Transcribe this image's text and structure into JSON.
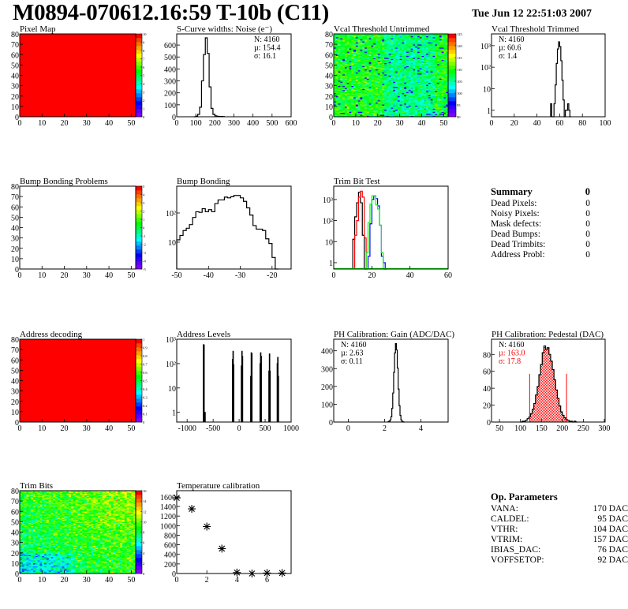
{
  "header": {
    "title": "M0894-070612.16:59 T-10b (C11)",
    "date": "Tue Jun 12 22:51:03 2007"
  },
  "summary": {
    "title": "Summary",
    "total": "0",
    "rows": [
      {
        "label": "Dead Pixels:",
        "value": "0"
      },
      {
        "label": "Noisy Pixels:",
        "value": "0"
      },
      {
        "label": "Mask defects:",
        "value": "0"
      },
      {
        "label": "Dead Bumps:",
        "value": "0"
      },
      {
        "label": "Dead Trimbits:",
        "value": "0"
      },
      {
        "label": "Address Probl:",
        "value": "0"
      }
    ]
  },
  "op_parameters": {
    "title": "Op. Parameters",
    "rows": [
      {
        "label": "VANA:",
        "value": "170 DAC"
      },
      {
        "label": "CALDEL:",
        "value": "95 DAC"
      },
      {
        "label": "VTHR:",
        "value": "104 DAC"
      },
      {
        "label": "VTRIM:",
        "value": "157 DAC"
      },
      {
        "label": "IBIAS_DAC:",
        "value": "76 DAC"
      },
      {
        "label": "VOFFSETOP:",
        "value": "92 DAC"
      }
    ]
  },
  "palette": [
    "#7f00ff",
    "#5a00ff",
    "#2f00ff",
    "#0000ff",
    "#0040ff",
    "#0080ff",
    "#00c0ff",
    "#00ffff",
    "#00ffc0",
    "#00ff80",
    "#00ff40",
    "#00ff00",
    "#40ff00",
    "#80ff00",
    "#c0ff00",
    "#ffff00",
    "#ffd000",
    "#ffa000",
    "#ff7000",
    "#ff4000",
    "#ff0000"
  ],
  "chart_data": [
    {
      "id": "pixel_map",
      "type": "heatmap",
      "title": "Pixel Map",
      "xlim": [
        0,
        52
      ],
      "ylim": [
        0,
        80
      ],
      "xticks": [
        0,
        10,
        20,
        30,
        40,
        50
      ],
      "yticks": [
        0,
        10,
        20,
        30,
        40,
        50,
        60,
        70,
        80
      ],
      "zlim": [
        0,
        10
      ],
      "zticks": [
        0,
        1,
        2,
        3,
        4,
        5,
        6,
        7,
        8,
        9,
        10
      ],
      "uniform_value": 10
    },
    {
      "id": "scurve",
      "type": "bar",
      "title": "S-Curve widths: Noise (e⁻)",
      "xlim": [
        0,
        600
      ],
      "ylim": [
        0,
        693
      ],
      "xticks": [
        0,
        100,
        200,
        300,
        400,
        500,
        600
      ],
      "yticks": [
        0,
        100,
        200,
        300,
        400,
        500,
        600
      ],
      "bins": {
        "start": 90,
        "width": 10,
        "counts": [
          0,
          5,
          20,
          80,
          300,
          520,
          660,
          530,
          250,
          70,
          20,
          8,
          4,
          3,
          3,
          2
        ]
      },
      "stats": [
        "N: 4160",
        "µ: 154.4",
        "σ: 16.1"
      ]
    },
    {
      "id": "vcal_untrimmed",
      "type": "heatmap",
      "title": "Vcal Threshold Untrimmed",
      "xlim": [
        0,
        52
      ],
      "ylim": [
        0,
        80
      ],
      "xticks": [
        0,
        10,
        20,
        30,
        40,
        50
      ],
      "yticks": [
        0,
        10,
        20,
        30,
        40,
        50,
        60,
        70,
        80
      ],
      "zlim": [
        90,
        125
      ],
      "zticks": [
        90,
        95,
        100,
        105,
        110,
        115,
        120,
        125
      ],
      "typical_range": [
        100,
        115
      ]
    },
    {
      "id": "vcal_trimmed",
      "type": "bar",
      "title": "Vcal Threshold Trimmed",
      "log_y": true,
      "xlim": [
        0,
        100
      ],
      "ylim": [
        0.5,
        3500
      ],
      "xticks": [
        0,
        20,
        40,
        60,
        80,
        100
      ],
      "yticks": [
        1,
        10,
        100,
        1000
      ],
      "ytick_labels": [
        "1",
        "10",
        "10²",
        "10³"
      ],
      "bins": {
        "start": 52,
        "width": 1,
        "counts": [
          2,
          0,
          0,
          2,
          15,
          150,
          700,
          1500,
          900,
          200,
          25,
          3,
          0,
          1,
          1,
          2,
          1,
          0
        ]
      },
      "stats": [
        "N: 4160",
        "µ: 60.6",
        "σ:  1.4"
      ]
    },
    {
      "id": "bump_problems",
      "type": "heatmap",
      "title": "Bump Bonding Problems",
      "xlim": [
        0,
        52
      ],
      "ylim": [
        0,
        80
      ],
      "xticks": [
        0,
        10,
        20,
        30,
        40,
        50
      ],
      "yticks": [
        0,
        10,
        20,
        30,
        40,
        50,
        60,
        70,
        80
      ],
      "zlim": [
        -5,
        5
      ],
      "zticks": [
        -5,
        -4,
        -3,
        -2,
        -1,
        0,
        1,
        2,
        3,
        4,
        5
      ]
    },
    {
      "id": "bump_bonding",
      "type": "bar",
      "title": "Bump Bonding",
      "log_y": true,
      "xlim": [
        -50,
        -14
      ],
      "ylim": [
        1.2,
        830
      ],
      "xticks": [
        -50,
        -40,
        -30,
        -20
      ],
      "yticks": [
        10,
        100
      ],
      "ytick_labels": [
        "10",
        "10²"
      ],
      "bins": {
        "start": -50,
        "width": 1,
        "counts": [
          12,
          17,
          25,
          30,
          40,
          70,
          110,
          105,
          140,
          110,
          130,
          110,
          210,
          280,
          280,
          350,
          330,
          360,
          400,
          400,
          330,
          250,
          150,
          85,
          37,
          28,
          28,
          25,
          13,
          9,
          3,
          0
        ]
      }
    },
    {
      "id": "trim_bit_test",
      "type": "bar",
      "title": "Trim Bit Test",
      "log_y": true,
      "xlim": [
        0,
        60
      ],
      "ylim": [
        0.5,
        4300
      ],
      "xticks": [
        0,
        20,
        40,
        60
      ],
      "yticks": [
        1,
        10,
        100,
        1000
      ],
      "ytick_labels": [
        "1",
        "10",
        "10²",
        "10³"
      ],
      "series": [
        {
          "color": "#000000",
          "bins": {
            "start": 10,
            "width": 1,
            "counts": [
              13,
              150,
              700,
              2200,
              700,
              20,
              0
            ]
          }
        },
        {
          "color": "#ff0000",
          "bins": {
            "start": 11,
            "width": 1,
            "counts": [
              20,
              100,
              1300,
              2500,
              1300,
              15,
              0
            ]
          }
        },
        {
          "color": "#0000ff",
          "bins": {
            "start": 18,
            "width": 1,
            "counts": [
              2,
              70,
              1000,
              1500,
              1100,
              500,
              60,
              2,
              1,
              0
            ]
          }
        },
        {
          "color": "#00ff00",
          "bins": {
            "start": 17,
            "width": 1,
            "counts": [
              3,
              80,
              600,
              1500,
              1500,
              550,
              350,
              60,
              3,
              0
            ]
          }
        }
      ]
    },
    {
      "id": "address_decoding",
      "type": "heatmap",
      "title": "Address decoding",
      "xlim": [
        0,
        52
      ],
      "ylim": [
        0,
        80
      ],
      "xticks": [
        0,
        10,
        20,
        30,
        40,
        50
      ],
      "yticks": [
        0,
        10,
        20,
        30,
        40,
        50,
        60,
        70,
        80
      ],
      "zlim": [
        0,
        1
      ],
      "zticks": [
        0,
        0.1,
        0.2,
        0.3,
        0.4,
        0.5,
        0.6,
        0.7,
        0.8,
        0.9,
        1
      ],
      "uniform_value": 1
    },
    {
      "id": "address_levels",
      "type": "bar",
      "title": "Address Levels",
      "log_y": true,
      "xlim": [
        -1200,
        1000
      ],
      "ylim": [
        0.4,
        1000
      ],
      "xticks": [
        -1000,
        -500,
        0,
        500,
        1000
      ],
      "yticks": [
        1,
        10,
        100,
        1000
      ],
      "ytick_labels": [
        "1",
        "10",
        "10²",
        "10³"
      ],
      "spikes": {
        "width": 10,
        "points": [
          [
            -690,
            600
          ],
          [
            -680,
            580
          ],
          [
            -660,
            1
          ],
          [
            -130,
            150
          ],
          [
            -120,
            320
          ],
          [
            -110,
            90
          ],
          [
            40,
            80
          ],
          [
            50,
            320
          ],
          [
            60,
            200
          ],
          [
            220,
            30
          ],
          [
            230,
            280
          ],
          [
            240,
            260
          ],
          [
            400,
            100
          ],
          [
            410,
            280
          ],
          [
            420,
            200
          ],
          [
            570,
            50
          ],
          [
            580,
            250
          ],
          [
            590,
            50
          ],
          [
            730,
            100
          ],
          [
            740,
            180
          ],
          [
            750,
            30
          ]
        ]
      }
    },
    {
      "id": "ph_gain",
      "type": "bar",
      "title": "PH Calibration: Gain (ADC/DAC)",
      "xlim": [
        -0.8,
        5.5
      ],
      "ylim": [
        0,
        465
      ],
      "xticks": [
        0,
        2,
        4
      ],
      "yticks": [
        0,
        100,
        200,
        300,
        400
      ],
      "bins": {
        "start": 2.2,
        "width": 0.05,
        "counts": [
          3,
          5,
          12,
          30,
          77,
          163,
          279,
          388,
          440,
          405,
          303,
          185,
          92,
          37,
          12,
          4,
          1,
          0
        ]
      },
      "stats": [
        "N: 4160",
        "µ: 2.63",
        "σ: 0.11"
      ]
    },
    {
      "id": "ph_pedestal",
      "type": "bar",
      "title": "PH Calibration: Pedestal (DAC)",
      "xlim": [
        31,
        302
      ],
      "ylim": [
        0,
        98
      ],
      "xticks": [
        50,
        100,
        150,
        200,
        250,
        300
      ],
      "yticks": [
        0,
        20,
        40,
        60,
        80
      ],
      "bins": {
        "start": 100,
        "width": 4,
        "counts": [
          0,
          1,
          1,
          2,
          4,
          6,
          10,
          15,
          22,
          32,
          42,
          56,
          68,
          82,
          90,
          86,
          88,
          80,
          72,
          62,
          50,
          38,
          28,
          19,
          12,
          8,
          5,
          3,
          2,
          1,
          1,
          0,
          1,
          0
        ]
      },
      "fit_range": [
        122,
        210
      ],
      "fill_color": "#ff0000",
      "cut_color": "#ff0000",
      "cut_height": 57,
      "stats": [
        "N: 4160",
        "µ: 163.0",
        "σ: 17.8"
      ],
      "stats_colors": [
        "#000000",
        "#ff0000",
        "#ff0000"
      ]
    },
    {
      "id": "trim_bits",
      "type": "heatmap",
      "title": "Trim Bits",
      "xlim": [
        0,
        52
      ],
      "ylim": [
        0,
        80
      ],
      "xticks": [
        0,
        10,
        20,
        30,
        40,
        50
      ],
      "yticks": [
        0,
        10,
        20,
        30,
        40,
        50,
        60,
        70,
        80
      ],
      "zlim": [
        0,
        16
      ],
      "zticks": [
        0,
        2,
        4,
        6,
        8,
        10,
        12,
        14,
        16
      ],
      "typical_range": [
        6,
        12
      ]
    },
    {
      "id": "temperature",
      "type": "scatter",
      "title": "Temperature calibration",
      "marker": "asterisk",
      "xlim": [
        0,
        7.6
      ],
      "ylim": [
        0,
        1730
      ],
      "xticks": [
        0,
        2,
        4,
        6
      ],
      "yticks": [
        0,
        200,
        400,
        600,
        800,
        1000,
        1200,
        1400,
        1600
      ],
      "x": [
        0,
        1,
        2,
        3,
        4,
        5,
        6,
        7
      ],
      "y": [
        1580,
        1350,
        980,
        520,
        20,
        0,
        10,
        10
      ]
    }
  ]
}
